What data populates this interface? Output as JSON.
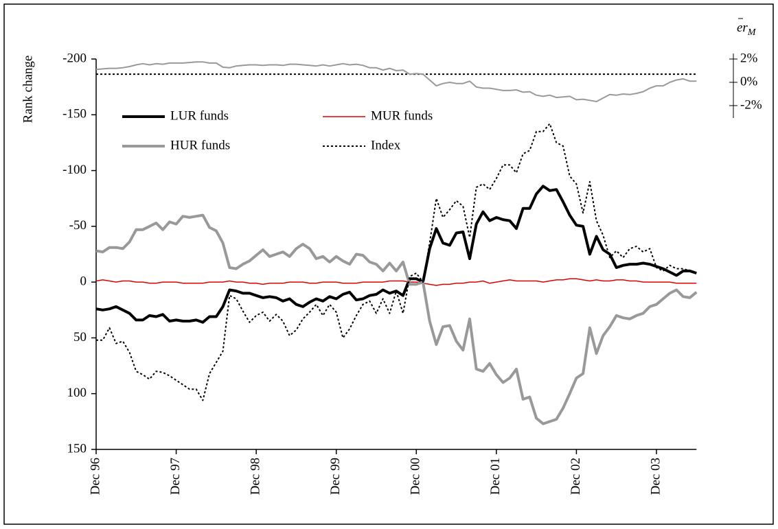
{
  "chart_data": {
    "type": "line",
    "ylabel": "Rank change",
    "y2label": "er",
    "y2label_sub": "M",
    "categories": [
      "Dec 96",
      null,
      null,
      null,
      null,
      null,
      null,
      null,
      null,
      null,
      null,
      null,
      "Dec 97",
      null,
      null,
      null,
      null,
      null,
      null,
      null,
      null,
      null,
      null,
      null,
      "Dec 98",
      null,
      null,
      null,
      null,
      null,
      null,
      null,
      null,
      null,
      null,
      null,
      "Dec 99",
      null,
      null,
      null,
      null,
      null,
      null,
      null,
      null,
      null,
      null,
      null,
      "Dec 00",
      null,
      null,
      null,
      null,
      null,
      null,
      null,
      null,
      null,
      null,
      null,
      "Dec 01",
      null,
      null,
      null,
      null,
      null,
      null,
      null,
      null,
      null,
      null,
      null,
      "Dec 02",
      null,
      null,
      null,
      null,
      null,
      null,
      null,
      null,
      null,
      null,
      null,
      "Dec 03",
      null,
      null,
      null,
      null,
      null,
      null
    ],
    "ylim": [
      -200,
      150
    ],
    "y_inverted": true,
    "yticks": [
      -200,
      -150,
      -100,
      -50,
      0,
      50,
      100,
      150
    ],
    "y2lim": [
      -31.5,
      2
    ],
    "y2ticks": [
      {
        "value": 2,
        "label": "2%"
      },
      {
        "value": 0,
        "label": "0%"
      },
      {
        "value": -2,
        "label": "-2%"
      }
    ],
    "y2_reference": 0.7,
    "series": [
      {
        "name": "LUR funds",
        "color": "#000000",
        "width": 4,
        "dash": false,
        "values": [
          24,
          25,
          24,
          22,
          25,
          28,
          34,
          34,
          30,
          31,
          29,
          35,
          34,
          35,
          35,
          34,
          36,
          31,
          31,
          22,
          7,
          8,
          10,
          10,
          12,
          14,
          13,
          14,
          17,
          15,
          20,
          22,
          18,
          15,
          17,
          13,
          15,
          11,
          9,
          16,
          15,
          12,
          11,
          7,
          10,
          8,
          12,
          -3,
          -3,
          0,
          -30,
          -48,
          -35,
          -33,
          -44,
          -45,
          -21,
          -52,
          -63,
          -55,
          -58,
          -56,
          -55,
          -48,
          -66,
          -66,
          -79,
          -86,
          -82,
          -83,
          -72,
          -60,
          -51,
          -50,
          -25,
          -41,
          -29,
          -25,
          -13,
          -15,
          -16,
          -16,
          -17,
          -16,
          -14,
          -12,
          -9,
          -6,
          -10,
          -10,
          -8
        ]
      },
      {
        "name": "MUR funds",
        "color": "#e00000",
        "width": 1.5,
        "dash": false,
        "values": [
          -1,
          -2,
          -1,
          0,
          -1,
          -1,
          0,
          0,
          1,
          1,
          0,
          0,
          0,
          1,
          1,
          1,
          1,
          0,
          0,
          0,
          -1,
          0,
          0,
          1,
          1,
          2,
          1,
          1,
          1,
          0,
          0,
          0,
          1,
          1,
          0,
          0,
          0,
          1,
          1,
          1,
          0,
          0,
          0,
          0,
          -1,
          -1,
          -1,
          0,
          0,
          1,
          2,
          3,
          2,
          2,
          1,
          1,
          0,
          0,
          -1,
          1,
          0,
          -1,
          -2,
          -1,
          -1,
          -1,
          -1,
          0,
          -1,
          -2,
          -2,
          -3,
          -3,
          -2,
          -1,
          -2,
          -1,
          -1,
          -2,
          -2,
          -1,
          -1,
          0,
          0,
          0,
          0,
          0,
          1,
          1,
          1,
          1
        ]
      },
      {
        "name": "HUR funds",
        "color": "#999999",
        "width": 4,
        "dash": false,
        "values": [
          -28,
          -27,
          -31,
          -31,
          -30,
          -36,
          -47,
          -47,
          -50,
          -53,
          -47,
          -54,
          -52,
          -59,
          -58,
          -59,
          -60,
          -49,
          -46,
          -35,
          -13,
          -12,
          -16,
          -19,
          -24,
          -29,
          -23,
          -25,
          -27,
          -23,
          -30,
          -34,
          -30,
          -21,
          -23,
          -18,
          -23,
          -19,
          -16,
          -25,
          -24,
          -18,
          -16,
          -10,
          -17,
          -10,
          -18,
          2,
          2,
          0,
          35,
          56,
          40,
          39,
          53,
          61,
          33,
          78,
          80,
          73,
          83,
          90,
          86,
          78,
          105,
          103,
          122,
          127,
          125,
          123,
          113,
          100,
          86,
          82,
          41,
          64,
          48,
          40,
          30,
          32,
          33,
          30,
          28,
          22,
          20,
          15,
          10,
          7,
          13,
          14,
          9
        ]
      },
      {
        "name": "Index",
        "color": "#000000",
        "width": 2,
        "dash": true,
        "values": [
          52,
          52,
          41,
          55,
          53,
          63,
          80,
          83,
          87,
          80,
          81,
          84,
          88,
          92,
          96,
          96,
          106,
          82,
          72,
          62,
          12,
          15,
          26,
          36,
          30,
          27,
          35,
          29,
          35,
          48,
          43,
          33,
          27,
          20,
          30,
          20,
          27,
          50,
          42,
          30,
          20,
          17,
          28,
          15,
          28,
          8,
          28,
          -5,
          -8,
          0,
          -35,
          -75,
          -58,
          -65,
          -73,
          -68,
          -40,
          -85,
          -88,
          -83,
          -93,
          -105,
          -105,
          -98,
          -115,
          -118,
          -135,
          -135,
          -142,
          -125,
          -122,
          -95,
          -88,
          -62,
          -90,
          -55,
          -42,
          -22,
          -28,
          -22,
          -30,
          -32,
          -27,
          -30,
          -13,
          -10,
          -15,
          -12,
          -12,
          -10,
          -8
        ]
      },
      {
        "color": "#999999",
        "width": 2,
        "dash": false,
        "axis": "y2",
        "values": [
          1.1,
          1.15,
          1.2,
          1.2,
          1.25,
          1.35,
          1.5,
          1.6,
          1.5,
          1.6,
          1.55,
          1.65,
          1.65,
          1.65,
          1.7,
          1.75,
          1.75,
          1.65,
          1.65,
          1.3,
          1.25,
          1.4,
          1.45,
          1.5,
          1.5,
          1.45,
          1.5,
          1.5,
          1.45,
          1.55,
          1.55,
          1.5,
          1.45,
          1.4,
          1.5,
          1.4,
          1.5,
          1.6,
          1.5,
          1.55,
          1.45,
          1.25,
          1.25,
          1.05,
          1.2,
          1.0,
          1.05,
          0.7,
          0.75,
          0.7,
          0.2,
          -0.3,
          -0.1,
          0.0,
          -0.1,
          -0.1,
          0.1,
          -0.4,
          -0.5,
          -0.5,
          -0.6,
          -0.7,
          -0.7,
          -0.65,
          -0.85,
          -0.8,
          -1.1,
          -1.2,
          -1.1,
          -1.3,
          -1.25,
          -1.2,
          -1.5,
          -1.45,
          -1.55,
          -1.65,
          -1.35,
          -1.05,
          -1.1,
          -1.0,
          -1.05,
          -0.95,
          -0.8,
          -0.5,
          -0.3,
          -0.3,
          0.0,
          0.2,
          0.3,
          0.1,
          0.1
        ]
      }
    ]
  }
}
